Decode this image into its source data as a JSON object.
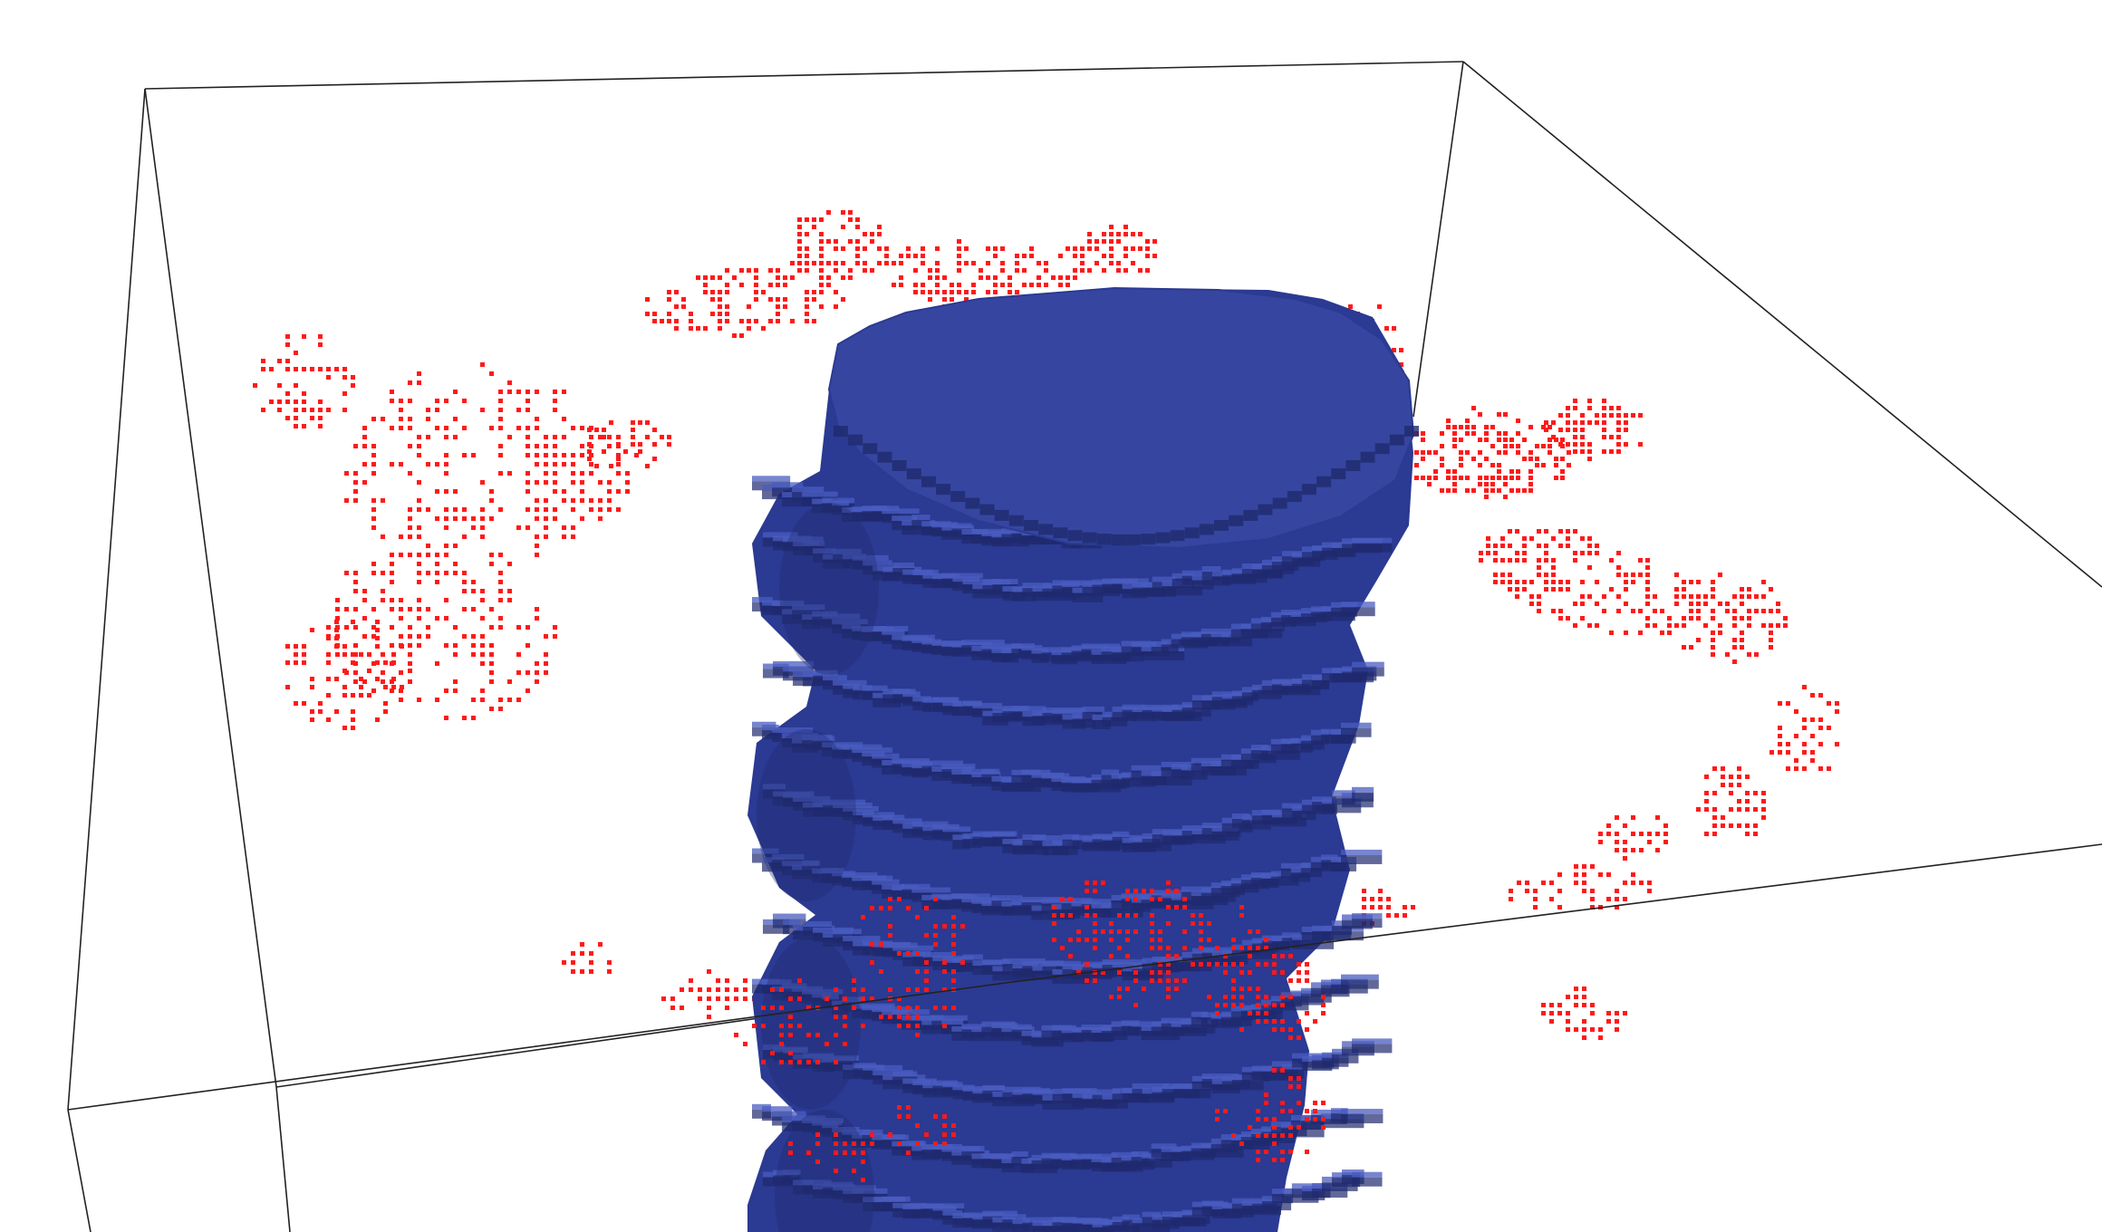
{
  "scene": {
    "background_color": "#ffffff",
    "bounding_box_color": "#222222",
    "voxel_column": {
      "top_color": "#3646a0",
      "side_color": "#2b3a92",
      "dark_color": "#1f2a6e",
      "highlight_color": "#4a5cc0"
    },
    "point_cloud": {
      "color": "#ff1a1a"
    }
  }
}
